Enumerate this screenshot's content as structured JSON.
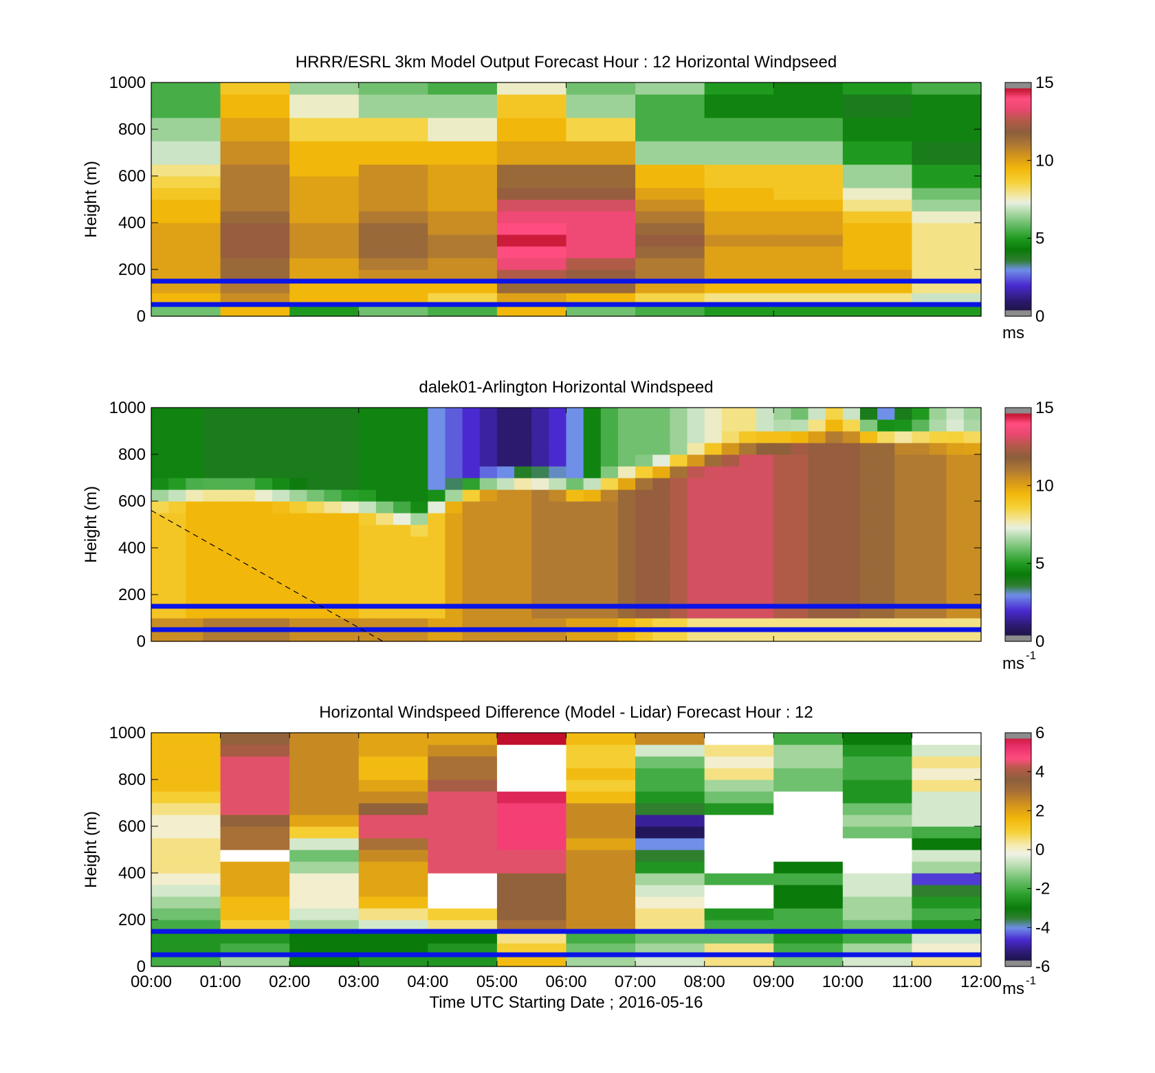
{
  "chart_data": [
    {
      "type": "heatmap",
      "title": "HRRR/ESRL 3km Model Output   Forecast Hour : 12 Horizontal Windpseed",
      "xlabel": "",
      "ylabel": "Height (m)",
      "xlim": [
        0,
        12
      ],
      "ylim": [
        0,
        1000
      ],
      "yticks": [
        "0",
        "200",
        "400",
        "600",
        "800",
        "1000"
      ],
      "colorbar": {
        "ticks": [
          "0",
          "5",
          "10",
          "15"
        ],
        "range": [
          0,
          15
        ],
        "unit": "ms",
        "superscript": ""
      },
      "reference_lines": [
        50,
        150
      ],
      "x_hours": [
        0,
        1,
        2,
        3,
        4,
        5,
        6,
        7,
        8,
        9,
        10,
        11
      ],
      "heights": [
        25,
        75,
        125,
        175,
        225,
        275,
        325,
        375,
        425,
        475,
        525,
        575,
        625,
        675,
        725,
        775,
        825,
        875,
        925,
        975
      ],
      "z": [
        [
          6.0,
          9.5,
          5.0,
          6.0,
          5.5,
          9.5,
          6.0,
          5.5,
          5.0,
          5.0,
          5.0,
          5.0
        ],
        [
          9.5,
          10.5,
          9.5,
          9.5,
          8.5,
          10.0,
          9.5,
          8.5,
          8.0,
          8.0,
          8.0,
          7.0
        ],
        [
          10.0,
          11.0,
          9.5,
          9.5,
          9.5,
          11.5,
          11.5,
          10.0,
          9.5,
          9.5,
          9.5,
          8.0
        ],
        [
          10.0,
          11.5,
          10.0,
          10.5,
          10.5,
          12.5,
          12.0,
          11.0,
          10.0,
          10.0,
          10.0,
          8.0
        ],
        [
          10.0,
          11.5,
          10.0,
          11.0,
          10.5,
          13.5,
          12.5,
          11.0,
          10.0,
          10.0,
          9.5,
          8.0
        ],
        [
          10.0,
          12.0,
          10.5,
          11.5,
          11.0,
          14.0,
          13.5,
          11.5,
          10.0,
          10.0,
          9.5,
          8.0
        ],
        [
          10.0,
          12.0,
          10.5,
          11.5,
          11.0,
          14.5,
          13.5,
          12.0,
          10.5,
          10.5,
          9.5,
          8.0
        ],
        [
          10.0,
          12.0,
          10.5,
          11.5,
          10.5,
          14.0,
          13.5,
          11.5,
          10.0,
          10.0,
          9.5,
          8.0
        ],
        [
          9.5,
          11.5,
          10.0,
          11.0,
          10.5,
          13.5,
          13.5,
          11.0,
          10.0,
          10.0,
          9.0,
          7.5
        ],
        [
          9.5,
          11.0,
          10.0,
          10.5,
          10.0,
          13.0,
          13.0,
          10.5,
          9.5,
          9.5,
          8.0,
          6.5
        ],
        [
          9.0,
          11.0,
          10.0,
          10.5,
          10.0,
          12.0,
          12.0,
          10.0,
          9.5,
          9.0,
          7.5,
          6.0
        ],
        [
          8.5,
          11.0,
          10.0,
          10.5,
          10.0,
          11.5,
          11.5,
          9.5,
          9.0,
          9.0,
          6.5,
          5.0
        ],
        [
          8.0,
          11.0,
          9.5,
          10.5,
          10.0,
          11.5,
          11.5,
          9.5,
          9.0,
          9.0,
          6.5,
          5.0
        ],
        [
          7.0,
          10.5,
          9.5,
          9.5,
          9.5,
          10.0,
          10.0,
          6.5,
          6.5,
          6.5,
          5.0,
          4.0
        ],
        [
          7.0,
          10.5,
          9.5,
          9.5,
          9.5,
          10.0,
          10.0,
          6.5,
          6.5,
          6.5,
          5.0,
          4.0
        ],
        [
          6.5,
          10.0,
          8.5,
          8.5,
          7.5,
          9.5,
          8.5,
          5.5,
          5.5,
          5.5,
          4.5,
          4.5
        ],
        [
          6.5,
          10.0,
          8.5,
          8.5,
          7.5,
          9.5,
          8.5,
          5.5,
          5.5,
          5.5,
          4.5,
          4.5
        ],
        [
          5.5,
          9.5,
          7.5,
          6.5,
          6.5,
          9.0,
          6.5,
          5.5,
          4.5,
          4.5,
          4.0,
          4.5
        ],
        [
          5.5,
          9.5,
          7.5,
          6.5,
          6.5,
          9.0,
          6.5,
          5.5,
          4.5,
          4.5,
          4.0,
          4.5
        ],
        [
          5.5,
          9.0,
          6.5,
          6.0,
          5.5,
          7.5,
          6.0,
          6.5,
          5.0,
          4.5,
          5.0,
          5.5
        ]
      ]
    },
    {
      "type": "heatmap",
      "title": "dalek01-Arlington  Horizontal Windspeed",
      "xlabel": "",
      "ylabel": "Height (m)",
      "xlim": [
        0,
        12
      ],
      "ylim": [
        0,
        1000
      ],
      "yticks": [
        "0",
        "200",
        "400",
        "600",
        "800",
        "1000"
      ],
      "colorbar": {
        "ticks": [
          "0",
          "5",
          "10",
          "15"
        ],
        "range": [
          0,
          15
        ],
        "unit": "ms",
        "superscript": "-1"
      },
      "reference_lines": [
        50,
        150
      ],
      "x_hours": [
        0,
        0.25,
        0.5,
        0.75,
        1,
        1.25,
        1.5,
        1.75,
        2,
        2.25,
        2.5,
        2.75,
        3,
        3.25,
        3.5,
        3.75,
        4,
        4.25,
        4.5,
        4.75,
        5,
        5.25,
        5.5,
        5.75,
        6,
        6.25,
        6.5,
        6.75,
        7,
        7.25,
        7.5,
        7.75,
        8,
        8.25,
        8.5,
        8.75,
        9,
        9.25,
        9.5,
        9.75,
        10,
        10.25,
        10.5,
        10.75,
        11,
        11.25,
        11.5,
        11.75
      ],
      "heights": [
        25,
        75,
        125,
        175,
        225,
        275,
        325,
        375,
        425,
        475,
        525,
        575,
        625,
        675,
        725,
        775,
        825,
        875,
        925,
        975
      ],
      "profile_params": {
        "low": [
          10.5,
          10.5,
          10.5,
          11,
          11,
          11,
          11,
          11,
          10.5,
          10.5,
          10.5,
          10.5,
          10.5,
          10.5,
          10.5,
          10.5,
          10,
          10,
          10.5,
          10.5,
          10.5,
          10.5,
          10.5,
          10.5,
          10,
          10,
          10,
          9.5,
          9,
          8.5,
          8.5,
          8,
          8,
          8,
          8,
          8,
          8,
          8,
          8,
          8,
          8,
          8,
          8,
          8,
          8,
          8,
          8,
          8
        ],
        "mid": [
          9,
          9,
          9.5,
          9.5,
          9.5,
          9.5,
          9.5,
          9.5,
          9.5,
          9.5,
          9.5,
          9.5,
          9,
          9,
          9,
          9,
          9,
          10,
          10.5,
          10.5,
          10.5,
          10.5,
          11,
          11,
          11,
          11,
          11,
          11.5,
          12,
          12,
          12.5,
          13,
          13,
          13,
          13,
          13,
          12.5,
          12.5,
          12,
          12,
          12,
          11.5,
          11.5,
          11,
          11,
          11,
          10.5,
          10.5
        ],
        "top": [
          4.5,
          4.5,
          4.5,
          4,
          4,
          4,
          4,
          4,
          4,
          4,
          4,
          4,
          4.5,
          4.5,
          4.5,
          4.5,
          3,
          2.5,
          2,
          1.5,
          1,
          1,
          1.5,
          2,
          3,
          4.5,
          5.5,
          6,
          6,
          6,
          6.5,
          7,
          7.5,
          8,
          8,
          7,
          6.5,
          6,
          7,
          8.5,
          7,
          4,
          3,
          4,
          5,
          6.5,
          7,
          6.5
        ],
        "transition_height": [
          620,
          630,
          640,
          650,
          650,
          650,
          640,
          630,
          620,
          610,
          600,
          590,
          580,
          560,
          540,
          520,
          600,
          630,
          660,
          680,
          690,
          700,
          690,
          680,
          660,
          660,
          680,
          700,
          720,
          740,
          760,
          780,
          800,
          820,
          840,
          860,
          870,
          880,
          890,
          900,
          900,
          900,
          890,
          880,
          880,
          870,
          870,
          870
        ]
      }
    },
    {
      "type": "heatmap",
      "title": "Horizontal Windspeed Difference (Model - Lidar) Forecast Hour : 12",
      "xlabel": "Time UTC  Starting Date ; 2016-05-16",
      "ylabel": "Height (m)",
      "xlim": [
        0,
        12
      ],
      "ylim": [
        0,
        1000
      ],
      "xticks": [
        "00:00",
        "01:00",
        "02:00",
        "03:00",
        "04:00",
        "05:00",
        "06:00",
        "07:00",
        "08:00",
        "09:00",
        "10:00",
        "11:00",
        "12:00"
      ],
      "yticks": [
        "0",
        "200",
        "400",
        "600",
        "800",
        "1000"
      ],
      "colorbar": {
        "ticks": [
          "-6",
          "-4",
          "-2",
          "0",
          "2",
          "4",
          "6"
        ],
        "range": [
          -6,
          6
        ],
        "unit": "ms",
        "superscript": "-1"
      },
      "reference_lines": [
        50,
        150
      ],
      "x_hours": [
        0,
        1,
        2,
        3,
        4,
        5,
        6,
        7,
        8,
        9,
        10,
        11
      ],
      "heights": [
        25,
        75,
        125,
        175,
        225,
        275,
        325,
        375,
        425,
        475,
        525,
        575,
        625,
        675,
        725,
        775,
        825,
        875,
        925,
        975
      ],
      "z": [
        [
          -2.0,
          -1.0,
          -3.0,
          -2.5,
          -2.5,
          1.5,
          -1.0,
          -0.5,
          0.5,
          -1.5,
          -0.5,
          0.5
        ],
        [
          -2.5,
          -2.0,
          -3.0,
          -3.0,
          -2.5,
          1.0,
          -1.5,
          -1.0,
          0.5,
          -2.0,
          -1.0,
          0.0
        ],
        [
          -2.5,
          -2.5,
          -3.0,
          -3.0,
          -3.0,
          0.5,
          -2.0,
          -1.5,
          -1.5,
          -2.5,
          -2.0,
          -0.5
        ],
        [
          -2.0,
          1.0,
          -1.0,
          -0.5,
          0.5,
          3.0,
          2.5,
          0.5,
          -2.0,
          -2.0,
          -1.5,
          -2.5
        ],
        [
          -1.5,
          1.5,
          -0.5,
          0.5,
          1.0,
          3.5,
          2.5,
          0.5,
          -2.5,
          -2.0,
          -1.0,
          -2.0
        ],
        [
          -1.0,
          1.5,
          0.0,
          1.5,
          null,
          3.5,
          2.5,
          0.0,
          null,
          -3.0,
          -1.0,
          -2.5
        ],
        [
          -0.5,
          2.0,
          0.0,
          2.0,
          null,
          3.5,
          2.5,
          -0.5,
          null,
          -3.0,
          -0.5,
          -3.5
        ],
        [
          0.0,
          2.0,
          0.0,
          2.0,
          null,
          3.5,
          2.5,
          -1.0,
          -2.0,
          -2.0,
          -0.5,
          -4.5
        ],
        [
          0.5,
          2.0,
          -1.0,
          2.0,
          4.5,
          4.5,
          2.5,
          -2.5,
          null,
          -3.0,
          null,
          -1.0
        ],
        [
          0.5,
          null,
          -1.5,
          2.5,
          4.5,
          4.5,
          2.5,
          -3.5,
          null,
          null,
          null,
          -0.5
        ],
        [
          0.5,
          3.0,
          -0.5,
          3.0,
          4.5,
          5.0,
          2.0,
          -4.0,
          null,
          null,
          null,
          -3.0
        ],
        [
          0.0,
          3.0,
          1.0,
          4.5,
          4.5,
          5.0,
          2.5,
          -5.5,
          null,
          null,
          -1.5,
          -2.0
        ],
        [
          0.0,
          3.5,
          2.0,
          4.5,
          4.5,
          5.0,
          2.5,
          -5.0,
          null,
          null,
          -1.0,
          -0.5
        ],
        [
          0.5,
          4.5,
          2.5,
          3.5,
          4.5,
          5.0,
          2.5,
          -3.5,
          -2.5,
          null,
          -1.5,
          -0.5
        ],
        [
          1.0,
          4.5,
          2.5,
          2.5,
          4.5,
          5.5,
          1.5,
          -2.5,
          -1.5,
          null,
          -2.5,
          -0.5
        ],
        [
          1.5,
          4.5,
          2.5,
          2.0,
          4.0,
          null,
          1.0,
          -2.0,
          -1.0,
          -1.5,
          -2.5,
          0.5
        ],
        [
          1.5,
          4.5,
          2.5,
          1.5,
          3.0,
          null,
          1.5,
          -2.0,
          0.5,
          -1.5,
          -2.0,
          0.0
        ],
        [
          1.5,
          4.5,
          2.5,
          1.5,
          3.0,
          null,
          1.0,
          -1.5,
          0.0,
          -1.0,
          -2.0,
          0.5
        ],
        [
          1.5,
          4.0,
          2.5,
          2.0,
          2.5,
          null,
          1.0,
          -0.5,
          0.5,
          -1.0,
          -2.5,
          -0.5
        ],
        [
          1.5,
          3.5,
          2.5,
          2.0,
          2.0,
          6.0,
          1.5,
          2.5,
          null,
          -2.0,
          -3.0,
          null
        ]
      ]
    }
  ]
}
